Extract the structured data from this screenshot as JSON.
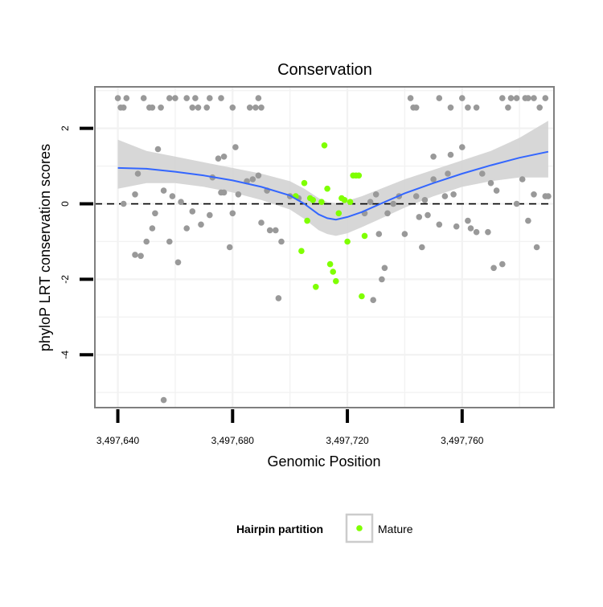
{
  "chart_data": {
    "type": "scatter",
    "title": "Conservation",
    "xlabel": "Genomic Position",
    "ylabel": "phyloP LRT conservation scores",
    "xlim": [
      3497632,
      3497792
    ],
    "ylim": [
      -5.4,
      3.1
    ],
    "x_ticks": [
      3497640,
      3497680,
      3497720,
      3497760
    ],
    "x_tick_labels": [
      "3,497,640",
      "3,497,680",
      "3,497,720",
      "3,497,760"
    ],
    "y_ticks": [
      2,
      0,
      -2,
      -4
    ],
    "y_tick_labels": [
      "2",
      "0",
      "-2",
      "-4"
    ],
    "grid": true,
    "reference_line": {
      "y": 0,
      "style": "dashed"
    },
    "legend": {
      "position": "bottom",
      "title": "Hairpin partition",
      "entries": [
        {
          "label": "Mature",
          "color": "#7FFF00"
        }
      ]
    },
    "colors": {
      "other": "#999999",
      "mature": "#7FFF00",
      "smooth": "#3366FF",
      "ribbon": "#D3D3D3"
    },
    "series": [
      {
        "name": "",
        "color": "#999999",
        "points": [
          [
            3497640,
            2.8
          ],
          [
            3497641,
            2.55
          ],
          [
            3497642,
            2.55
          ],
          [
            3497643,
            2.8
          ],
          [
            3497649,
            2.8
          ],
          [
            3497651,
            2.55
          ],
          [
            3497652,
            2.55
          ],
          [
            3497655,
            2.55
          ],
          [
            3497658,
            2.8
          ],
          [
            3497660,
            2.8
          ],
          [
            3497664,
            2.8
          ],
          [
            3497666,
            2.55
          ],
          [
            3497667,
            2.8
          ],
          [
            3497668,
            2.55
          ],
          [
            3497671,
            2.55
          ],
          [
            3497672,
            2.8
          ],
          [
            3497676,
            2.8
          ],
          [
            3497680,
            2.55
          ],
          [
            3497686,
            2.55
          ],
          [
            3497688,
            2.55
          ],
          [
            3497689,
            2.8
          ],
          [
            3497690,
            2.55
          ],
          [
            3497742,
            2.8
          ],
          [
            3497743,
            2.55
          ],
          [
            3497744,
            2.55
          ],
          [
            3497752,
            2.8
          ],
          [
            3497756,
            2.55
          ],
          [
            3497760,
            2.8
          ],
          [
            3497762,
            2.55
          ],
          [
            3497765,
            2.55
          ],
          [
            3497774,
            2.8
          ],
          [
            3497776,
            2.55
          ],
          [
            3497777,
            2.8
          ],
          [
            3497779,
            2.8
          ],
          [
            3497782,
            2.8
          ],
          [
            3497783,
            2.8
          ],
          [
            3497785,
            2.8
          ],
          [
            3497787,
            2.55
          ],
          [
            3497789,
            2.8
          ],
          [
            3497654,
            1.45
          ],
          [
            3497675,
            1.2
          ],
          [
            3497677,
            1.25
          ],
          [
            3497681,
            1.5
          ],
          [
            3497642,
            0.0
          ],
          [
            3497646,
            0.25
          ],
          [
            3497647,
            0.8
          ],
          [
            3497652,
            -0.65
          ],
          [
            3497650,
            -1.0
          ],
          [
            3497646,
            -1.35
          ],
          [
            3497648,
            -1.38
          ],
          [
            3497653,
            -0.25
          ],
          [
            3497656,
            0.35
          ],
          [
            3497658,
            -1.0
          ],
          [
            3497659,
            0.2
          ],
          [
            3497661,
            -1.55
          ],
          [
            3497662,
            0.05
          ],
          [
            3497664,
            -0.65
          ],
          [
            3497666,
            -0.2
          ],
          [
            3497669,
            -0.55
          ],
          [
            3497672,
            -0.3
          ],
          [
            3497673,
            0.7
          ],
          [
            3497676,
            0.3
          ],
          [
            3497677,
            0.3
          ],
          [
            3497680,
            -0.25
          ],
          [
            3497679,
            -1.15
          ],
          [
            3497682,
            0.25
          ],
          [
            3497685,
            0.6
          ],
          [
            3497687,
            0.65
          ],
          [
            3497689,
            0.75
          ],
          [
            3497690,
            -0.5
          ],
          [
            3497692,
            0.35
          ],
          [
            3497693,
            -0.7
          ],
          [
            3497695,
            -0.7
          ],
          [
            3497696,
            -2.5
          ],
          [
            3497697,
            -1.0
          ],
          [
            3497700,
            0.2
          ],
          [
            3497703,
            0.15
          ],
          [
            3497656,
            -5.2
          ],
          [
            3497726,
            -0.25
          ],
          [
            3497728,
            0.05
          ],
          [
            3497730,
            0.25
          ],
          [
            3497731,
            -0.8
          ],
          [
            3497732,
            -2.0
          ],
          [
            3497733,
            -1.7
          ],
          [
            3497729,
            -2.55
          ],
          [
            3497734,
            -0.25
          ],
          [
            3497736,
            0.0
          ],
          [
            3497738,
            0.2
          ],
          [
            3497740,
            -0.8
          ],
          [
            3497744,
            0.2
          ],
          [
            3497745,
            -0.35
          ],
          [
            3497746,
            -1.15
          ],
          [
            3497747,
            0.1
          ],
          [
            3497748,
            -0.3
          ],
          [
            3497750,
            0.65
          ],
          [
            3497750,
            1.25
          ],
          [
            3497752,
            -0.55
          ],
          [
            3497754,
            0.2
          ],
          [
            3497755,
            0.8
          ],
          [
            3497756,
            1.3
          ],
          [
            3497757,
            0.25
          ],
          [
            3497758,
            -0.6
          ],
          [
            3497760,
            1.5
          ],
          [
            3497762,
            -0.45
          ],
          [
            3497763,
            -0.65
          ],
          [
            3497765,
            -0.75
          ],
          [
            3497767,
            0.8
          ],
          [
            3497769,
            -0.75
          ],
          [
            3497770,
            0.55
          ],
          [
            3497771,
            -1.7
          ],
          [
            3497772,
            0.35
          ],
          [
            3497774,
            -1.6
          ],
          [
            3497779,
            0.0
          ],
          [
            3497781,
            0.65
          ],
          [
            3497783,
            -0.45
          ],
          [
            3497785,
            0.25
          ],
          [
            3497786,
            -1.15
          ],
          [
            3497789,
            0.2
          ],
          [
            3497790,
            0.2
          ]
        ]
      },
      {
        "name": "Mature",
        "color": "#7FFF00",
        "points": [
          [
            3497702,
            0.2
          ],
          [
            3497704,
            -1.25
          ],
          [
            3497705,
            0.55
          ],
          [
            3497706,
            -0.45
          ],
          [
            3497707,
            0.15
          ],
          [
            3497708,
            0.1
          ],
          [
            3497709,
            -2.2
          ],
          [
            3497711,
            0.05
          ],
          [
            3497712,
            1.55
          ],
          [
            3497713,
            0.4
          ],
          [
            3497714,
            -1.6
          ],
          [
            3497715,
            -1.8
          ],
          [
            3497716,
            -2.05
          ],
          [
            3497717,
            -0.25
          ],
          [
            3497718,
            0.15
          ],
          [
            3497719,
            0.1
          ],
          [
            3497720,
            -1.0
          ],
          [
            3497721,
            0.05
          ],
          [
            3497722,
            0.75
          ],
          [
            3497723,
            0.75
          ],
          [
            3497724,
            0.75
          ],
          [
            3497725,
            -2.45
          ],
          [
            3497726,
            -0.85
          ]
        ]
      }
    ],
    "smooth": {
      "x": [
        3497640,
        3497650,
        3497660,
        3497670,
        3497680,
        3497690,
        3497700,
        3497705,
        3497710,
        3497713,
        3497716,
        3497720,
        3497725,
        3497730,
        3497740,
        3497750,
        3497760,
        3497770,
        3497780,
        3497790
      ],
      "y": [
        0.95,
        0.93,
        0.85,
        0.75,
        0.62,
        0.45,
        0.22,
        0.0,
        -0.28,
        -0.38,
        -0.42,
        -0.35,
        -0.22,
        -0.05,
        0.28,
        0.55,
        0.8,
        1.02,
        1.22,
        1.38
      ],
      "lower": [
        0.4,
        0.55,
        0.55,
        0.45,
        0.3,
        0.1,
        -0.15,
        -0.4,
        -0.7,
        -0.8,
        -0.85,
        -0.78,
        -0.62,
        -0.45,
        -0.1,
        0.2,
        0.45,
        0.6,
        0.7,
        0.7
      ],
      "upper": [
        1.7,
        1.4,
        1.25,
        1.1,
        0.95,
        0.8,
        0.6,
        0.4,
        0.15,
        0.05,
        0.02,
        0.08,
        0.2,
        0.35,
        0.65,
        0.9,
        1.15,
        1.4,
        1.75,
        2.2
      ]
    }
  }
}
